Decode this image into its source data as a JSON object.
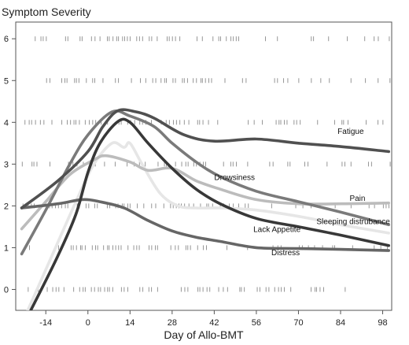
{
  "chart_data": {
    "type": "line",
    "title": "",
    "xlabel": "Day of Allo-BMT",
    "ylabel": "Symptom Severity",
    "xlim": [
      -24,
      101
    ],
    "ylim": [
      -0.5,
      6.4
    ],
    "x_ticks": [
      -14,
      0,
      14,
      28,
      42,
      56,
      70,
      84,
      98
    ],
    "y_ticks": [
      0,
      1,
      2,
      3,
      4,
      5,
      6
    ],
    "grid": false,
    "legend": "none (lines labeled directly)",
    "rug_levels": [
      0,
      1,
      2,
      3,
      4,
      5,
      6
    ],
    "series": [
      {
        "name": "Fatigue",
        "color": "#505050",
        "points": [
          [
            -22,
            1.95
          ],
          [
            -10,
            2.6
          ],
          [
            0,
            3.3
          ],
          [
            5,
            3.9
          ],
          [
            10,
            4.28
          ],
          [
            16,
            4.25
          ],
          [
            22,
            4.1
          ],
          [
            32,
            3.7
          ],
          [
            42,
            3.55
          ],
          [
            56,
            3.6
          ],
          [
            70,
            3.5
          ],
          [
            84,
            3.42
          ],
          [
            100,
            3.3
          ]
        ]
      },
      {
        "name": "Drowsiness",
        "color": "#7a7a7a",
        "points": [
          [
            -22,
            0.85
          ],
          [
            -14,
            1.9
          ],
          [
            -6,
            3.0
          ],
          [
            0,
            3.7
          ],
          [
            8,
            4.25
          ],
          [
            14,
            4.15
          ],
          [
            22,
            3.9
          ],
          [
            28,
            3.5
          ],
          [
            36,
            3.05
          ],
          [
            44,
            2.7
          ],
          [
            56,
            2.35
          ],
          [
            70,
            2.1
          ],
          [
            84,
            1.85
          ],
          [
            100,
            1.55
          ]
        ]
      },
      {
        "name": "Pain",
        "color": "#bcbcbc",
        "points": [
          [
            -22,
            1.45
          ],
          [
            -14,
            2.1
          ],
          [
            -6,
            2.75
          ],
          [
            2,
            3.1
          ],
          [
            6,
            3.2
          ],
          [
            14,
            3.05
          ],
          [
            20,
            2.85
          ],
          [
            28,
            2.9
          ],
          [
            36,
            2.6
          ],
          [
            44,
            2.4
          ],
          [
            56,
            2.15
          ],
          [
            70,
            2.05
          ],
          [
            84,
            2.05
          ],
          [
            100,
            2.07
          ]
        ]
      },
      {
        "name": "Sleeping distrubance",
        "color": "#e6e6e6",
        "points": [
          [
            -20,
            -0.5
          ],
          [
            -12,
            0.8
          ],
          [
            -4,
            2.1
          ],
          [
            2,
            3.0
          ],
          [
            8,
            3.5
          ],
          [
            12,
            3.4
          ],
          [
            14,
            3.5
          ],
          [
            18,
            3.0
          ],
          [
            24,
            2.3
          ],
          [
            30,
            2.0
          ],
          [
            36,
            1.95
          ],
          [
            44,
            1.95
          ],
          [
            56,
            1.9
          ],
          [
            70,
            1.75
          ],
          [
            84,
            1.55
          ],
          [
            100,
            1.35
          ]
        ]
      },
      {
        "name": "Lack Appetite",
        "color": "#383838",
        "points": [
          [
            -19,
            -0.5
          ],
          [
            -10,
            0.8
          ],
          [
            -4,
            1.8
          ],
          [
            0,
            2.8
          ],
          [
            4,
            3.5
          ],
          [
            10,
            4.02
          ],
          [
            14,
            4.0
          ],
          [
            20,
            3.5
          ],
          [
            28,
            2.9
          ],
          [
            36,
            2.4
          ],
          [
            44,
            2.05
          ],
          [
            56,
            1.7
          ],
          [
            70,
            1.5
          ],
          [
            84,
            1.3
          ],
          [
            100,
            1.05
          ]
        ]
      },
      {
        "name": "Distress",
        "color": "#666666",
        "points": [
          [
            -22,
            1.95
          ],
          [
            -10,
            2.05
          ],
          [
            -2,
            2.15
          ],
          [
            4,
            2.1
          ],
          [
            12,
            1.95
          ],
          [
            20,
            1.65
          ],
          [
            28,
            1.4
          ],
          [
            36,
            1.25
          ],
          [
            44,
            1.15
          ],
          [
            56,
            1.0
          ],
          [
            70,
            0.98
          ],
          [
            84,
            0.96
          ],
          [
            100,
            0.93
          ]
        ]
      }
    ],
    "annotations": [
      {
        "text": "Fatigue",
        "x": 83,
        "y": 3.72
      },
      {
        "text": "Drowsiness",
        "x": 42,
        "y": 2.62
      },
      {
        "text": "Pain",
        "x": 87,
        "y": 2.12
      },
      {
        "text": "Sleeping distrubance",
        "x": 76,
        "y": 1.56
      },
      {
        "text": "Lack Appetite",
        "x": 55,
        "y": 1.38
      },
      {
        "text": "Distress",
        "x": 61,
        "y": 0.82
      }
    ]
  }
}
